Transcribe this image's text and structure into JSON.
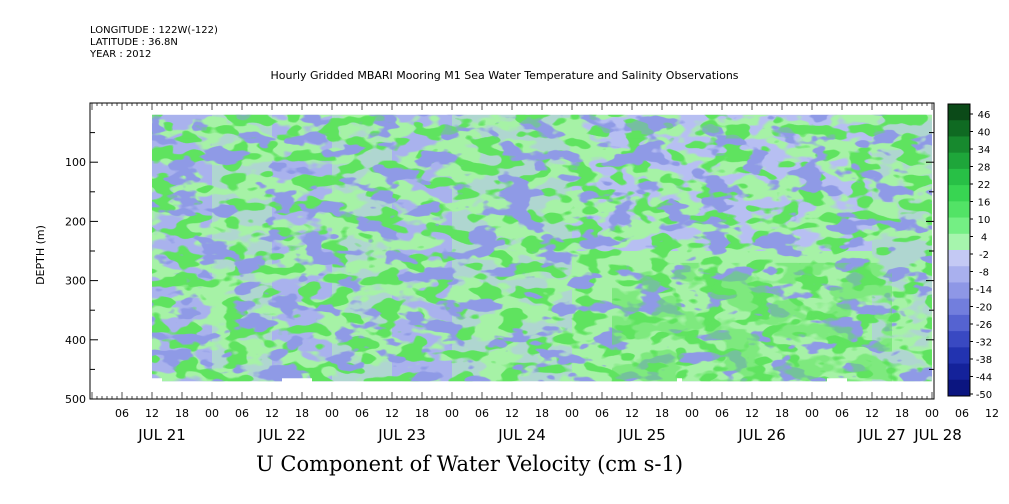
{
  "header": {
    "longitude": "LONGITUDE : 122W(-122)",
    "latitude": "LATITUDE : 36.8N",
    "year": "YEAR : 2012"
  },
  "colors": {
    "negative_light": "#b7bff2",
    "negative_mid": "#8f9ae6",
    "negative_dark": "#1f2bb8",
    "positive_light": "#a6f2a6",
    "positive_mid": "#5fe35f",
    "positive_dark": "#0d6a22"
  },
  "chart_data": {
    "type": "heatmap",
    "title": "Hourly Gridded MBARI Mooring M1 Sea Water Temperature and Salinity Observations",
    "units_label": "U Component of Water Velocity (cm s-1)",
    "ylabel": "DEPTH (m)",
    "ylim": [
      500,
      0
    ],
    "y_axis_reversed": true,
    "y_ticks": [
      100,
      200,
      300,
      400,
      500
    ],
    "y_tick_labels": [
      "100",
      "200",
      "300",
      "400",
      "500"
    ],
    "x_hour_labels": [
      "06",
      "12",
      "18",
      "00",
      "06",
      "12",
      "18",
      "00",
      "06",
      "12",
      "18",
      "00",
      "06",
      "12",
      "18",
      "00",
      "06",
      "12",
      "18",
      "00",
      "06",
      "12",
      "18",
      "00",
      "06",
      "12",
      "18",
      "00",
      "06",
      "12",
      "18",
      "00"
    ],
    "x_day_labels": [
      "JUL 21",
      "JUL 22",
      "JUL 23",
      "JUL 24",
      "JUL 25",
      "JUL 26",
      "JUL 27",
      "JUL 28"
    ],
    "data_time_range_hours": [
      12,
      176
    ],
    "data_depth_range_m": [
      20,
      470
    ],
    "colorbar_levels": [
      46,
      40,
      34,
      28,
      22,
      16,
      10,
      4,
      -2,
      -8,
      -14,
      -20,
      -26,
      -32,
      -38,
      -44,
      -50
    ],
    "colorbar_labels": [
      "46",
      "40",
      "34",
      "28",
      "22",
      "16",
      "10",
      "4",
      "-2",
      "-8",
      "-14",
      "-20",
      "-26",
      "-32",
      "-38",
      "-44",
      "-50"
    ],
    "colorbar_colors": [
      "#0b4a18",
      "#0f6a22",
      "#17892e",
      "#1ea63a",
      "#28c046",
      "#38d552",
      "#52e366",
      "#74ef84",
      "#a6f5ad",
      "#c4c9f4",
      "#a9b0ee",
      "#8e97e6",
      "#727edd",
      "#5563d1",
      "#3949c2",
      "#2233b0",
      "#14229a",
      "#0b1580"
    ],
    "columns": [
      {
        "time_hour": 12,
        "regime": "negative"
      },
      {
        "time_hour": 24,
        "regime": "mixed"
      },
      {
        "time_hour": 36,
        "regime": "negative"
      },
      {
        "time_hour": 48,
        "regime": "mixed"
      },
      {
        "time_hour": 60,
        "regime": "negative"
      },
      {
        "time_hour": 72,
        "regime": "mixed"
      },
      {
        "time_hour": 84,
        "regime": "mixed"
      },
      {
        "time_hour": 96,
        "regime": "positive-deep"
      },
      {
        "time_hour": 108,
        "regime": "positive-deep"
      },
      {
        "time_hour": 120,
        "regime": "positive-deep"
      },
      {
        "time_hour": 132,
        "regime": "positive-deep"
      },
      {
        "time_hour": 144,
        "regime": "positive-deep"
      },
      {
        "time_hour": 156,
        "regime": "mixed"
      },
      {
        "time_hour": 168,
        "regime": "positive-deep"
      }
    ]
  }
}
